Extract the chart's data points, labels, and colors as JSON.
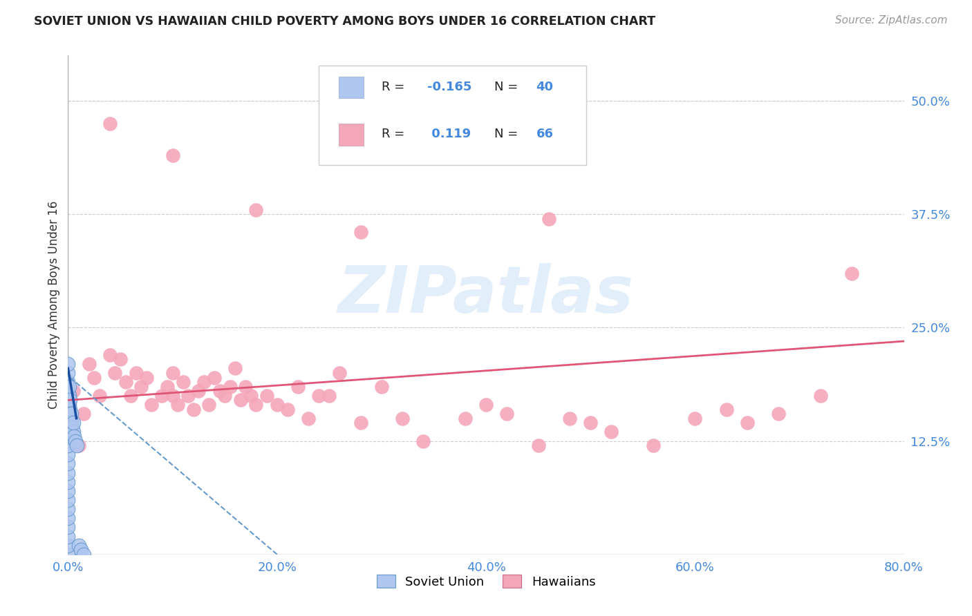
{
  "title": "SOVIET UNION VS HAWAIIAN CHILD POVERTY AMONG BOYS UNDER 16 CORRELATION CHART",
  "source": "Source: ZipAtlas.com",
  "ylabel": "Child Poverty Among Boys Under 16",
  "xlim": [
    0.0,
    0.8
  ],
  "ylim": [
    0.0,
    0.55
  ],
  "soviet_color": "#aec6f0",
  "soviet_edge_color": "#6699cc",
  "hawaiian_color": "#f4a7b9",
  "hawaiian_edge_color": "#cc6688",
  "soviet_line_color": "#1a4fa0",
  "soviet_line_dash_color": "#6699cc",
  "hawaiian_line_color": "#e05575",
  "bg_color": "#ffffff",
  "watermark": "ZIPatlas",
  "grid_color": "#cccccc",
  "right_tick_color": "#4488dd",
  "xtick_color": "#4488dd",
  "soviet_x": [
    0.0,
    0.0,
    0.0,
    0.0,
    0.0,
    0.0,
    0.0,
    0.0,
    0.0,
    0.0,
    0.0,
    0.0,
    0.0,
    0.0,
    0.0,
    0.0,
    0.0,
    0.0,
    0.0,
    0.0,
    0.0,
    0.0,
    0.001,
    0.001,
    0.001,
    0.001,
    0.002,
    0.002,
    0.002,
    0.003,
    0.003,
    0.004,
    0.005,
    0.005,
    0.006,
    0.007,
    0.008,
    0.01,
    0.012,
    0.015
  ],
  "soviet_y": [
    0.0,
    0.01,
    0.02,
    0.03,
    0.04,
    0.05,
    0.06,
    0.07,
    0.08,
    0.09,
    0.1,
    0.11,
    0.12,
    0.13,
    0.14,
    0.15,
    0.16,
    0.17,
    0.18,
    0.19,
    0.2,
    0.21,
    0.155,
    0.165,
    0.175,
    0.185,
    0.15,
    0.16,
    0.17,
    0.145,
    0.155,
    0.14,
    0.135,
    0.145,
    0.13,
    0.125,
    0.12,
    0.01,
    0.005,
    0.0
  ],
  "hawaiian_x": [
    0.005,
    0.01,
    0.015,
    0.02,
    0.025,
    0.03,
    0.04,
    0.045,
    0.05,
    0.055,
    0.06,
    0.065,
    0.07,
    0.075,
    0.08,
    0.09,
    0.095,
    0.1,
    0.1,
    0.105,
    0.11,
    0.115,
    0.12,
    0.125,
    0.13,
    0.135,
    0.14,
    0.145,
    0.15,
    0.155,
    0.16,
    0.165,
    0.17,
    0.175,
    0.18,
    0.19,
    0.2,
    0.21,
    0.22,
    0.23,
    0.24,
    0.25,
    0.26,
    0.28,
    0.3,
    0.32,
    0.34,
    0.38,
    0.4,
    0.42,
    0.45,
    0.48,
    0.5,
    0.52,
    0.56,
    0.6,
    0.63,
    0.65,
    0.68,
    0.72,
    0.75,
    0.04,
    0.1,
    0.18,
    0.28,
    0.46
  ],
  "hawaiian_y": [
    0.18,
    0.12,
    0.155,
    0.21,
    0.195,
    0.175,
    0.22,
    0.2,
    0.215,
    0.19,
    0.175,
    0.2,
    0.185,
    0.195,
    0.165,
    0.175,
    0.185,
    0.2,
    0.175,
    0.165,
    0.19,
    0.175,
    0.16,
    0.18,
    0.19,
    0.165,
    0.195,
    0.18,
    0.175,
    0.185,
    0.205,
    0.17,
    0.185,
    0.175,
    0.165,
    0.175,
    0.165,
    0.16,
    0.185,
    0.15,
    0.175,
    0.175,
    0.2,
    0.145,
    0.185,
    0.15,
    0.125,
    0.15,
    0.165,
    0.155,
    0.12,
    0.15,
    0.145,
    0.135,
    0.12,
    0.15,
    0.16,
    0.145,
    0.155,
    0.175,
    0.31,
    0.475,
    0.44,
    0.38,
    0.355,
    0.37
  ],
  "hawaiian_trend_x0": 0.0,
  "hawaiian_trend_x1": 0.8,
  "hawaiian_trend_y0": 0.17,
  "hawaiian_trend_y1": 0.235,
  "soviet_trend_solid_x0": 0.0,
  "soviet_trend_solid_x1": 0.008,
  "soviet_trend_solid_y0": 0.205,
  "soviet_trend_solid_y1": 0.15,
  "soviet_trend_dash_x0": 0.002,
  "soviet_trend_dash_x1": 0.2,
  "soviet_trend_dash_y0": 0.195,
  "soviet_trend_dash_y1": 0.0
}
